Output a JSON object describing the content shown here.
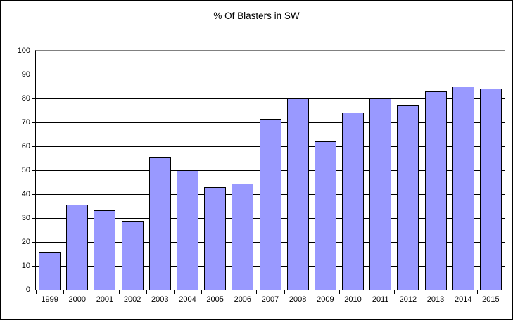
{
  "title": "% Of Blasters in SW",
  "chart_data": {
    "type": "bar",
    "title": "% Of Blasters in SW",
    "xlabel": "",
    "ylabel": "",
    "categories": [
      "1999",
      "2000",
      "2001",
      "2002",
      "2003",
      "2004",
      "2005",
      "2006",
      "2007",
      "2008",
      "2009",
      "2010",
      "2011",
      "2012",
      "2013",
      "2014",
      "2015"
    ],
    "values": [
      15.5,
      35.7,
      33.3,
      28.7,
      55.5,
      50,
      43,
      44.5,
      71.5,
      80,
      62,
      74,
      80,
      77,
      83,
      85,
      84
    ],
    "ylim": [
      0,
      100
    ],
    "ytick_step": 10,
    "ytick_labels": [
      "0",
      "10",
      "20",
      "30",
      "40",
      "50",
      "60",
      "70",
      "80",
      "90",
      "100"
    ],
    "grid": true,
    "legend": false,
    "colors": {
      "bar_fill": "#9999FF",
      "bar_border": "#000000",
      "gridline": "#000000",
      "plot_border": "#808080",
      "axis": "#000000",
      "background": "#FFFFFF",
      "text": "#000000"
    }
  }
}
